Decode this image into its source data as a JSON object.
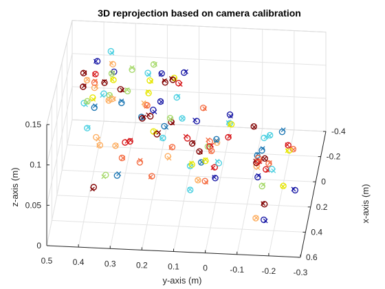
{
  "chart_data": {
    "type": "scatter",
    "title": "3D reprojection based on camera calibration",
    "xlabel": "y-axis (m)",
    "ylabel": "z-axis (m)",
    "depth_label": "x-axis (m)",
    "y_axis_ticks": [
      "0.5",
      "0.4",
      "0.3",
      "0.2",
      "0.1",
      "0",
      "-0.1",
      "-0.2",
      "-0.3"
    ],
    "z_axis_ticks": [
      "0",
      "0.05",
      "0.1",
      "0.15"
    ],
    "x_axis_ticks": [
      "-0.4",
      "-0.2",
      "0",
      "0.2",
      "0.4",
      "0.6"
    ],
    "y_range": [
      0.5,
      -0.3
    ],
    "z_range": [
      0,
      0.15
    ],
    "x_range": [
      -0.4,
      0.6
    ],
    "grid": true,
    "markers": {
      "original": "circle",
      "reprojected": "cross"
    },
    "colors": [
      "#d7191c",
      "#f46d43",
      "#fdae61",
      "#e6e600",
      "#a6d96a",
      "#4dd0e1",
      "#1f78b4",
      "#1a1aa6",
      "#800000"
    ],
    "clusters": [
      {
        "y": 0.36,
        "x": 0.05,
        "zmin": 0.02,
        "zmax": 0.17,
        "n": 34
      },
      {
        "y": 0.18,
        "x": 0.05,
        "zmin": 0.02,
        "zmax": 0.14,
        "n": 30
      },
      {
        "y": 0.02,
        "x": 0.15,
        "zmin": 0.01,
        "zmax": 0.12,
        "n": 24
      },
      {
        "y": -0.18,
        "x": 0.2,
        "zmin": 0.0,
        "zmax": 0.12,
        "n": 24
      },
      {
        "y": 0.3,
        "x": -0.2,
        "zmin": 0.22,
        "zmax": 0.24,
        "n": 1
      },
      {
        "y": 0.2,
        "x": 0.1,
        "zmin": 0.16,
        "zmax": 0.17,
        "n": 1
      }
    ]
  }
}
